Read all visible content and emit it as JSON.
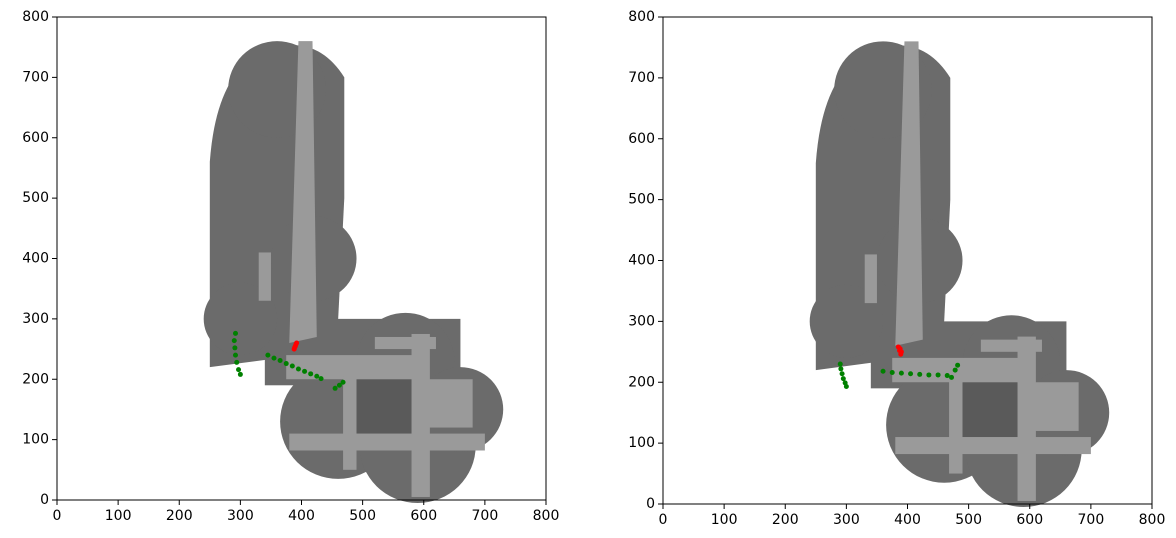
{
  "chart_data": [
    {
      "type": "scatter",
      "xlim": [
        0,
        800
      ],
      "ylim": [
        0,
        800
      ],
      "xticks": [
        0,
        100,
        200,
        300,
        400,
        500,
        600,
        700,
        800
      ],
      "yticks": [
        0,
        100,
        200,
        300,
        400,
        500,
        600,
        700,
        800
      ],
      "series": [
        {
          "color": "#008000",
          "x": [
            292,
            290,
            291,
            292,
            294,
            297,
            300,
            345,
            355,
            365,
            375,
            385,
            395,
            405,
            415,
            425,
            432,
            455,
            462,
            468
          ],
          "values": [
            276,
            264,
            252,
            240,
            228,
            216,
            208,
            240,
            235,
            231,
            226,
            222,
            217,
            213,
            209,
            205,
            201,
            185,
            190,
            195
          ]
        },
        {
          "color": "#ff0000",
          "x": [
            388,
            390,
            392,
            391,
            389
          ],
          "values": [
            250,
            255,
            260,
            258,
            253
          ]
        }
      ]
    },
    {
      "type": "scatter",
      "xlim": [
        0,
        800
      ],
      "ylim": [
        0,
        800
      ],
      "xticks": [
        0,
        100,
        200,
        300,
        400,
        500,
        600,
        700,
        800
      ],
      "yticks": [
        0,
        100,
        200,
        300,
        400,
        500,
        600,
        700,
        800
      ],
      "series": [
        {
          "color": "#008000",
          "x": [
            290,
            291,
            293,
            295,
            298,
            300,
            360,
            375,
            390,
            405,
            420,
            435,
            450,
            465,
            472,
            478,
            482
          ],
          "values": [
            230,
            222,
            214,
            206,
            199,
            193,
            218,
            216,
            215,
            214,
            213,
            212,
            212,
            211,
            208,
            220,
            228
          ]
        },
        {
          "color": "#ff0000",
          "x": [
            385,
            387,
            389,
            390,
            388
          ],
          "values": [
            258,
            252,
            246,
            250,
            255
          ]
        }
      ]
    }
  ]
}
